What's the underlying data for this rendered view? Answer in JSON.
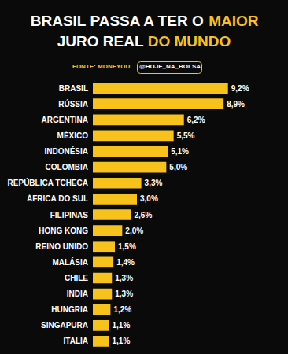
{
  "chart_data": {
    "type": "bar",
    "orientation": "horizontal",
    "title": [
      "BRASIL PASSA A TER O",
      "MAIOR",
      "JURO REAL",
      "DO MUNDO"
    ],
    "annotations": [
      "FONTE: MONEYOU",
      "@HOJE_NA_BOLSA"
    ],
    "categories": [
      "BRASIL",
      "RÚSSIA",
      "ARGENTINA",
      "MÉXICO",
      "INDONÉSIA",
      "COLOMBIA",
      "REPÚBLICA TCHECA",
      "ÁFRICA DO SUL",
      "FILIPINAS",
      "HONG KONG",
      "REINO UNIDO",
      "MALÁSIA",
      "CHILE",
      "INDIA",
      "HUNGRIA",
      "SINGAPURA",
      "ITALIA"
    ],
    "values": [
      9.2,
      8.9,
      6.2,
      5.5,
      5.1,
      5.0,
      3.3,
      3.0,
      2.6,
      2.0,
      1.5,
      1.4,
      1.3,
      1.3,
      1.2,
      1.1,
      1.1
    ],
    "value_labels": [
      "9,2%",
      "8,9%",
      "6,2%",
      "5,5%",
      "5,1%",
      "5,0%",
      "3,3%",
      "3,0%",
      "2,6%",
      "2,0%",
      "1,5%",
      "1,4%",
      "1,3%",
      "1,3%",
      "1,2%",
      "1,1%",
      "1,1%"
    ],
    "color": "#f7c21b",
    "xlim": [
      0,
      12
    ],
    "data_labels": true,
    "tick_labels": "y",
    "grid": false
  }
}
